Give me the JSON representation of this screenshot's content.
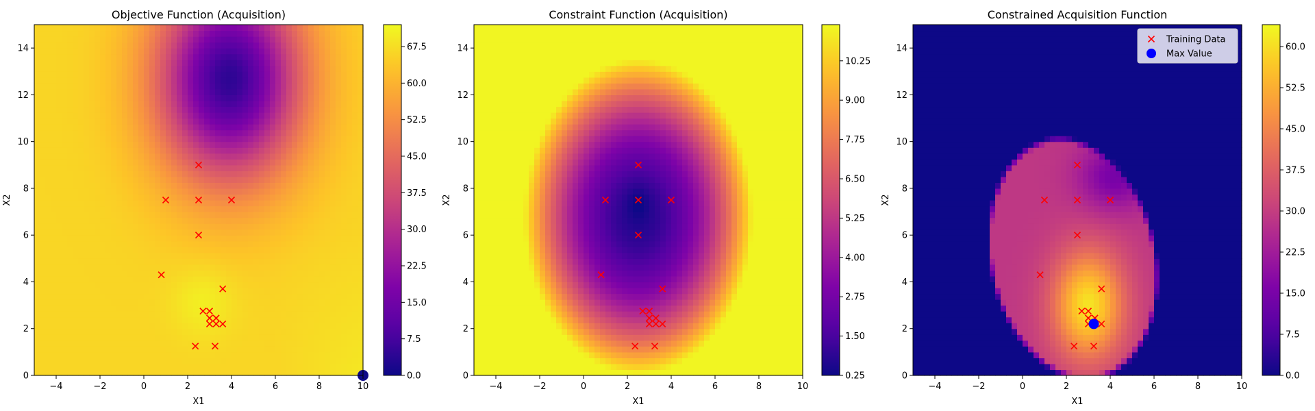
{
  "chart_data": [
    {
      "type": "heatmap",
      "title": "Objective Function (Acquisition)",
      "xlabel": "X1",
      "ylabel": "X2",
      "xlim": [
        -5,
        10
      ],
      "ylim": [
        0,
        15
      ],
      "xticks": [
        "−4",
        "−2",
        "0",
        "2",
        "4",
        "6",
        "8",
        "10"
      ],
      "yticks": [
        "0",
        "2",
        "4",
        "6",
        "8",
        "10",
        "12",
        "14"
      ],
      "colormap": "plasma",
      "colorbar": {
        "min": 0.0,
        "max": 72.0,
        "ticks": [
          "0.0",
          "7.5",
          "15.0",
          "22.5",
          "30.0",
          "37.5",
          "45.0",
          "52.5",
          "60.0",
          "67.5"
        ]
      },
      "features": {
        "low_region": [
          3.9,
          12.7
        ],
        "high_region": [
          2.7,
          3.2
        ],
        "edge_marker": [
          10,
          0
        ]
      }
    },
    {
      "type": "heatmap",
      "title": "Constraint Function (Acquisition)",
      "xlabel": "X1",
      "ylabel": "X2",
      "xlim": [
        -5,
        10
      ],
      "ylim": [
        0,
        15
      ],
      "xticks": [
        "−4",
        "−2",
        "0",
        "2",
        "4",
        "6",
        "8",
        "10"
      ],
      "yticks": [
        "0",
        "2",
        "4",
        "6",
        "8",
        "10",
        "12",
        "14"
      ],
      "colormap": "plasma",
      "colorbar": {
        "min": 0.25,
        "max": 11.4,
        "ticks": [
          "0.25",
          "1.50",
          "2.75",
          "4.00",
          "5.25",
          "6.50",
          "7.75",
          "9.00",
          "10.25"
        ]
      },
      "features": {
        "low_region": [
          2.5,
          6.8
        ]
      }
    },
    {
      "type": "heatmap",
      "title": "Constrained Acquisition Function",
      "xlabel": "X1",
      "ylabel": "X2",
      "xlim": [
        -5,
        10
      ],
      "ylim": [
        0,
        15
      ],
      "xticks": [
        "−4",
        "−2",
        "0",
        "2",
        "4",
        "6",
        "8",
        "10"
      ],
      "yticks": [
        "0",
        "2",
        "4",
        "6",
        "8",
        "10",
        "12",
        "14"
      ],
      "colormap": "plasma",
      "colorbar": {
        "min": 0.0,
        "max": 64.0,
        "ticks": [
          "0.0",
          "7.5",
          "15.0",
          "22.5",
          "30.0",
          "37.5",
          "45.0",
          "52.5",
          "60.0"
        ]
      },
      "feasible_region_center": [
        2.3,
        5.0
      ],
      "legend": {
        "location": "upper right",
        "entries": [
          "Training Data",
          "Max Value"
        ]
      },
      "max_value_point": [
        3.25,
        2.2
      ]
    }
  ],
  "training_data": {
    "name": "Training Data",
    "color": "#ff0000",
    "points": [
      [
        2.5,
        9.0
      ],
      [
        1.0,
        7.5
      ],
      [
        2.5,
        7.5
      ],
      [
        4.0,
        7.5
      ],
      [
        2.5,
        6.0
      ],
      [
        0.8,
        4.3
      ],
      [
        3.6,
        3.7
      ],
      [
        2.7,
        2.75
      ],
      [
        3.0,
        2.75
      ],
      [
        3.0,
        2.45
      ],
      [
        3.3,
        2.45
      ],
      [
        3.0,
        2.2
      ],
      [
        3.3,
        2.2
      ],
      [
        3.6,
        2.2
      ],
      [
        2.35,
        1.25
      ],
      [
        3.25,
        1.25
      ]
    ]
  },
  "colors": {
    "max_marker": "#0000ff",
    "low_fill": "#0d0887"
  }
}
